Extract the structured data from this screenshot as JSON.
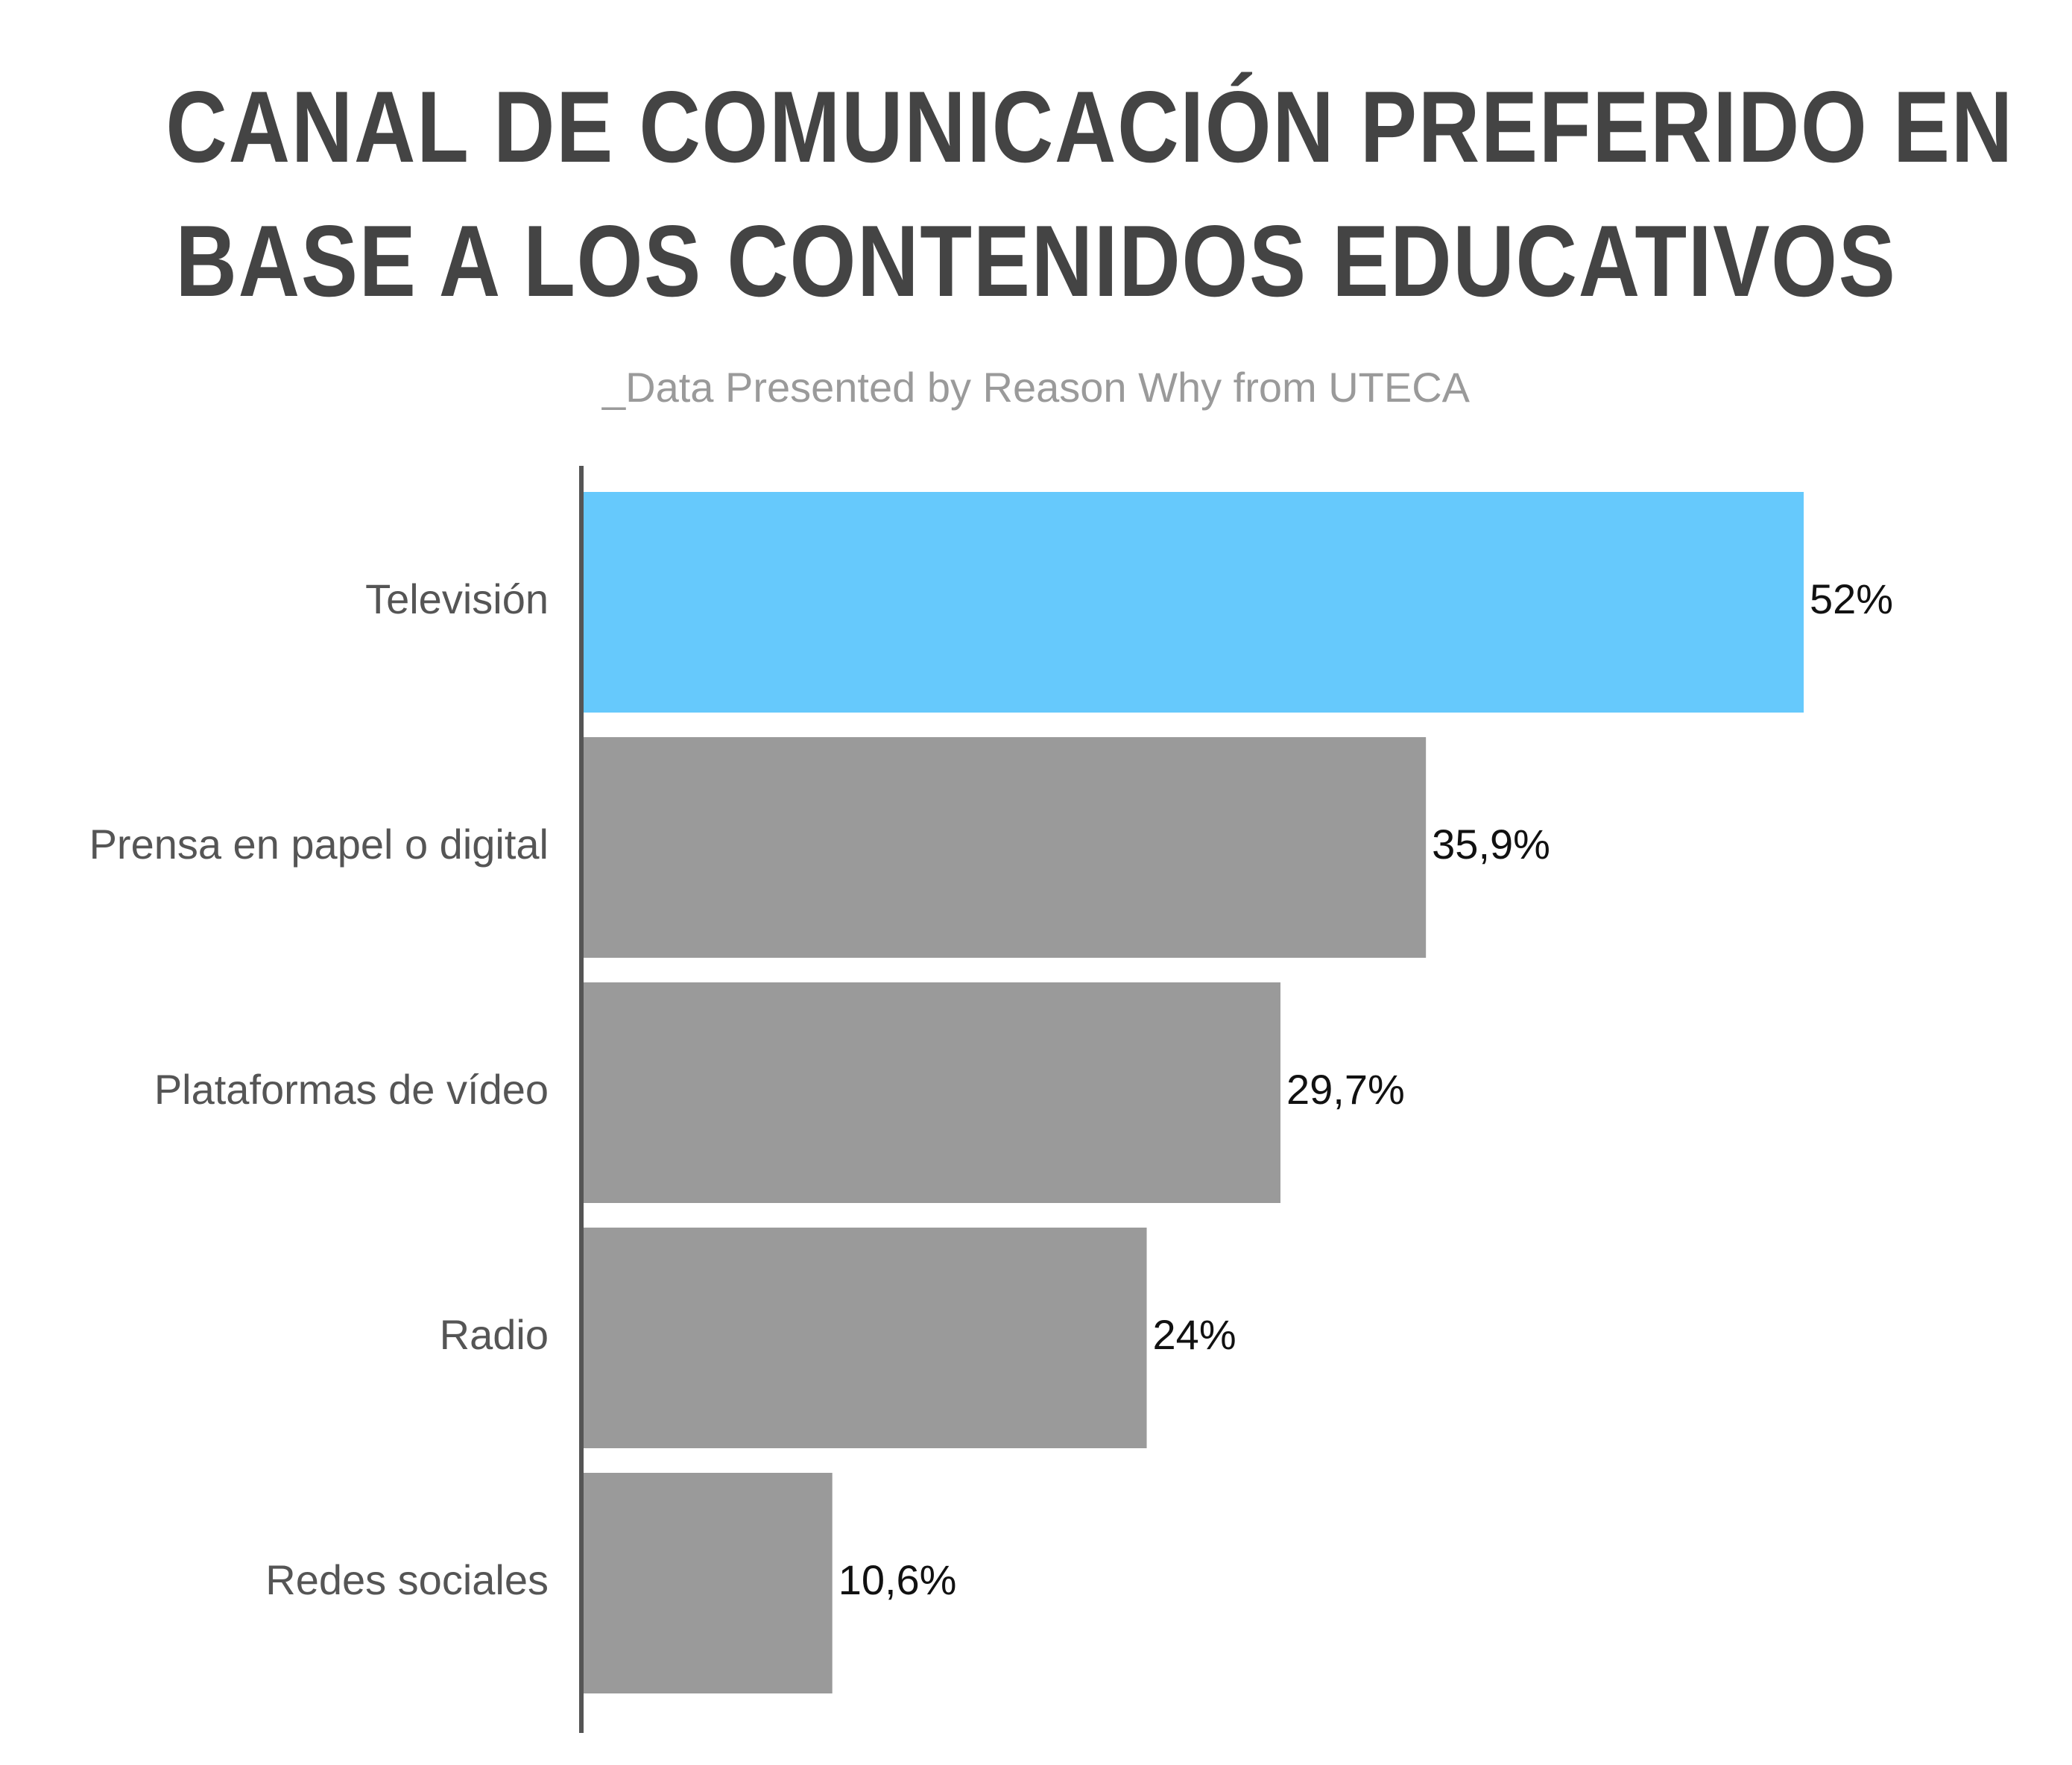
{
  "chart_data": {
    "type": "bar",
    "orientation": "horizontal",
    "title_line_1": "CANAL DE COMUNICACIÓN PREFERIDO EN",
    "title_line_2": "BASE A LOS CONTENIDOS EDUCATIVOS",
    "subtitle": "_Data Presented by Reason Why from UTECA",
    "categories": [
      "Televisión",
      "Prensa en papel o digital",
      "Plataformas de vídeo",
      "Radio",
      "Redes sociales"
    ],
    "values": [
      52,
      35.9,
      29.7,
      24,
      10.6
    ],
    "value_labels": [
      "52%",
      "35,9%",
      "29,7%",
      "24%",
      "10,6%"
    ],
    "xlim": [
      0,
      52
    ],
    "grid": false,
    "legend": "none",
    "highlight_color": "#66c9fc",
    "bar_color": "#9a9a9a",
    "axis_color": "#555555"
  }
}
